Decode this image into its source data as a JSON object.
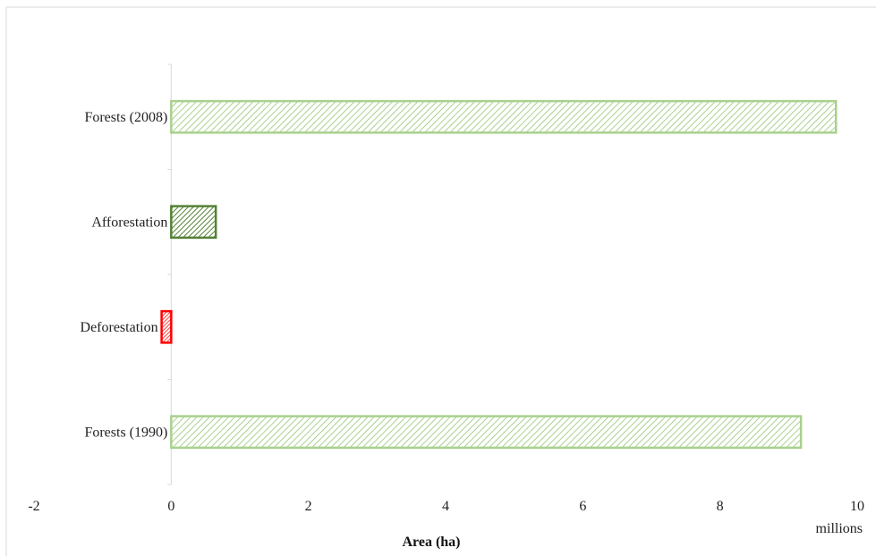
{
  "chart_data": {
    "type": "bar",
    "orientation": "horizontal",
    "title": "",
    "xlabel": "Area (ha)",
    "x_unit_label": "millions",
    "xlim": [
      -2,
      10
    ],
    "xticks": [
      -2,
      0,
      2,
      4,
      6,
      8,
      10
    ],
    "xtick_labels": [
      "-2",
      "0",
      "2",
      "4",
      "6",
      "8",
      "10"
    ],
    "grid": false,
    "legend": "none",
    "categories": [
      "Forests (2008)",
      "Afforestation",
      "Deforestation",
      "Forests (1990)"
    ],
    "values": [
      9.69,
      0.65,
      -0.14,
      9.18
    ],
    "colors": [
      {
        "stroke": "#a9d18e",
        "hatch": "#a9d18e"
      },
      {
        "stroke": "#548235",
        "hatch": "#548235"
      },
      {
        "stroke": "#ff0000",
        "hatch": "#ff0000"
      },
      {
        "stroke": "#a9d18e",
        "hatch": "#a9d18e"
      }
    ]
  }
}
